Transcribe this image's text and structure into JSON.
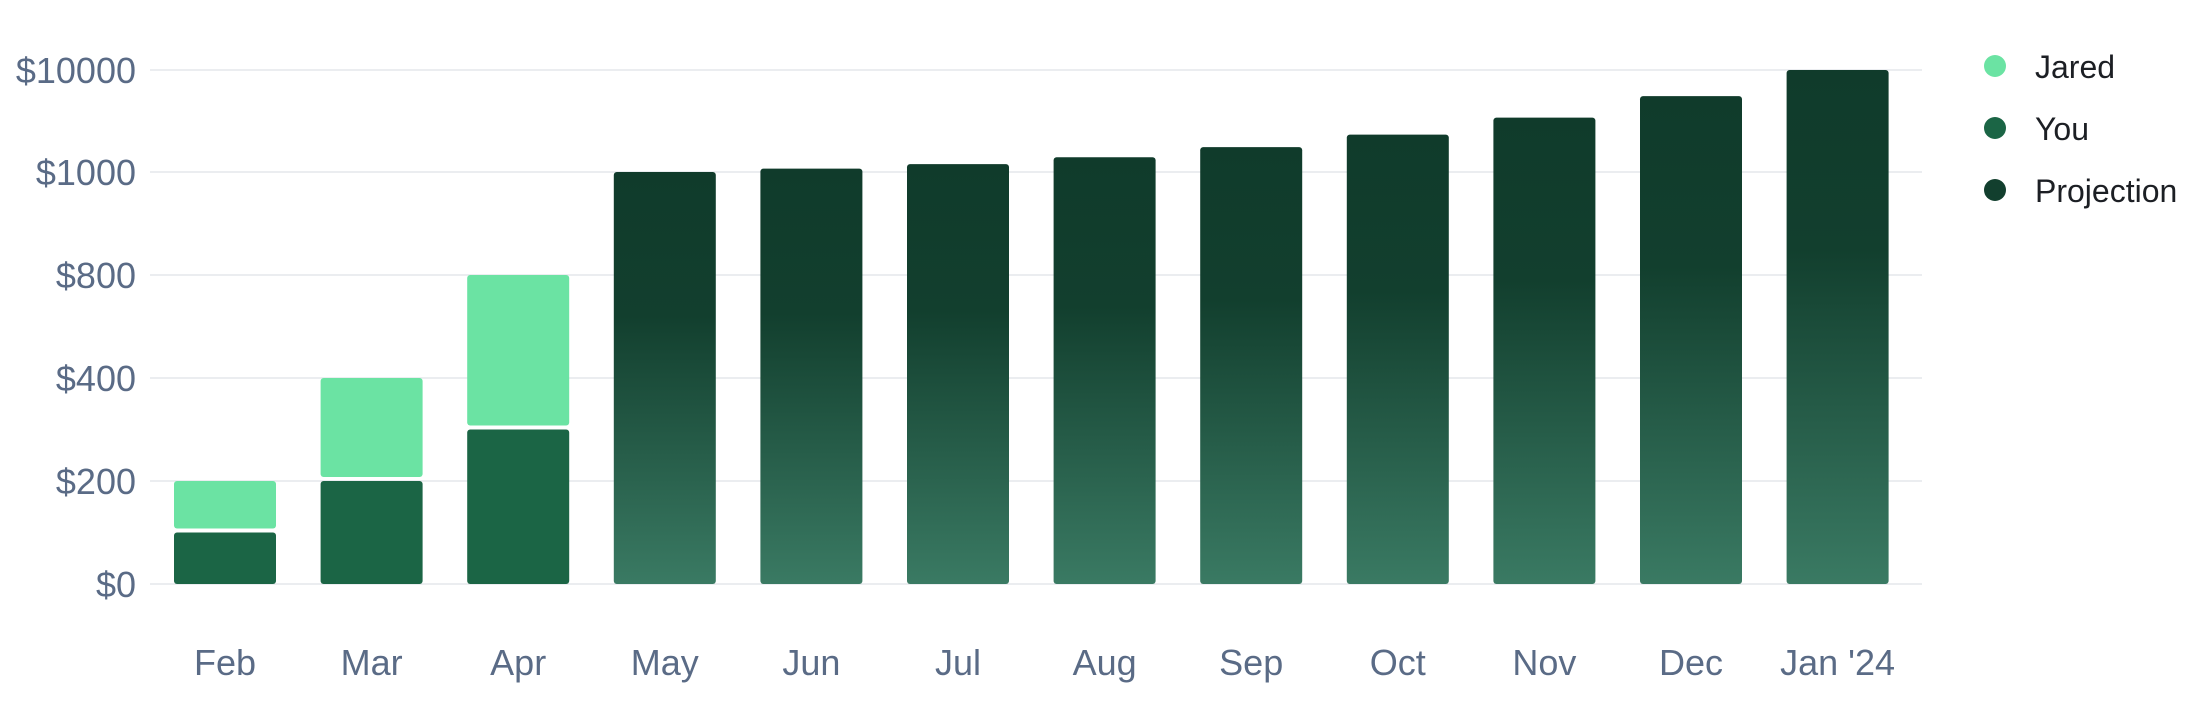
{
  "chart_data": {
    "type": "bar",
    "stacked": true,
    "categories": [
      "Feb",
      "Mar",
      "Apr",
      "May",
      "Jun",
      "Jul",
      "Aug",
      "Sep",
      "Oct",
      "Nov",
      "Dec",
      "Jan '24"
    ],
    "y_ticks": [
      "$0",
      "$200",
      "$400",
      "$800",
      "$1000",
      "$10000"
    ],
    "y_tick_values": [
      0,
      200,
      400,
      800,
      1000,
      10000
    ],
    "series": [
      {
        "name": "You",
        "color": "#1b6545",
        "values": [
          100,
          200,
          300,
          null,
          null,
          null,
          null,
          null,
          null,
          null,
          null,
          null
        ]
      },
      {
        "name": "Jared",
        "color": "#6be3a3",
        "values": [
          100,
          200,
          500,
          null,
          null,
          null,
          null,
          null,
          null,
          null,
          null,
          null
        ]
      },
      {
        "name": "Projection",
        "color": "#123f2e",
        "values": [
          null,
          null,
          null,
          1000,
          1300,
          1700,
          2300,
          3200,
          4300,
          5800,
          7700,
          10000
        ]
      }
    ],
    "legend": [
      "Jared",
      "You",
      "Projection"
    ],
    "legend_position": "right",
    "grid": true
  },
  "colors": {
    "jared": "#6be3a3",
    "you": "#1b6545",
    "projection_top": "#103b2b",
    "projection_bottom": "#3a7a63",
    "axis_text": "#5a6b86",
    "grid": "#ebedf0"
  }
}
